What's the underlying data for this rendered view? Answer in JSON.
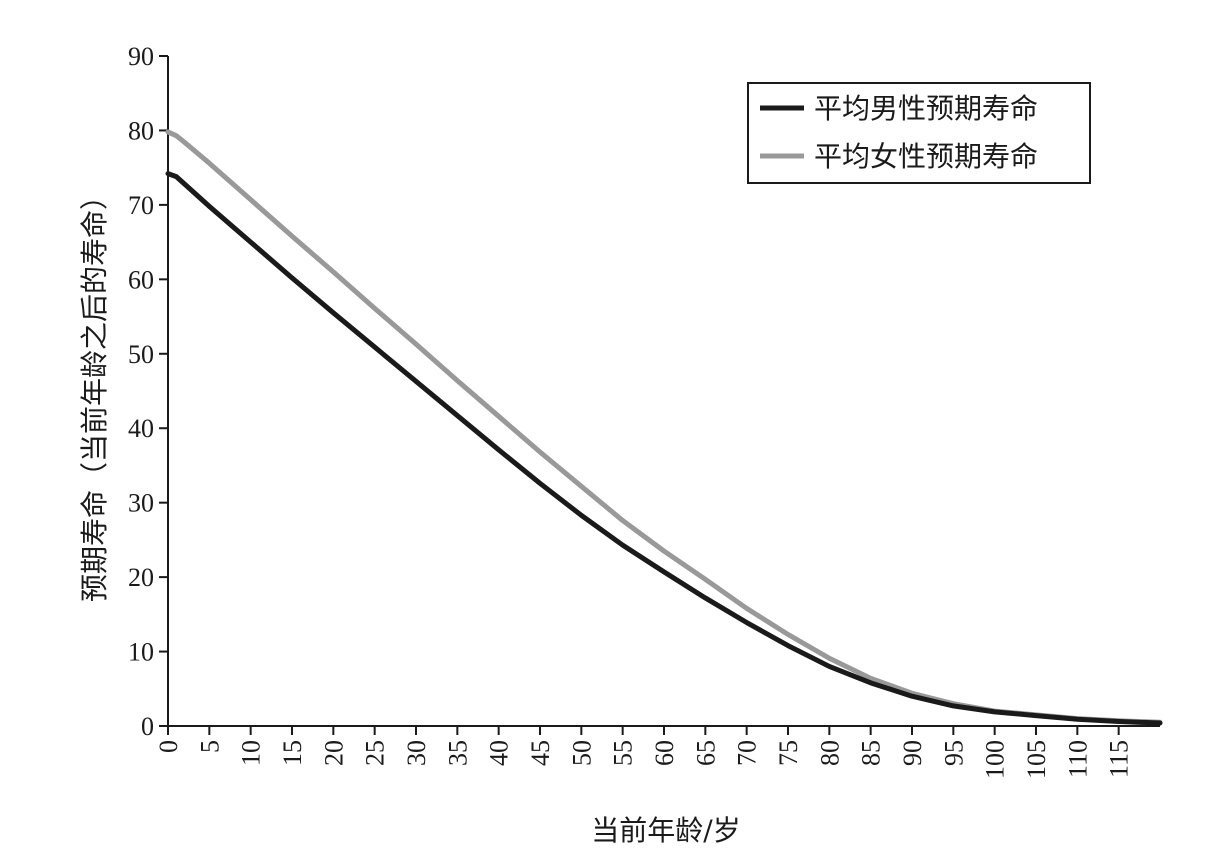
{
  "chart_data": {
    "type": "line",
    "title": "",
    "xlabel": "当前年龄/岁",
    "ylabel": "预期寿命（当前年龄之后的寿命）",
    "xlim": [
      0,
      120
    ],
    "ylim": [
      0,
      90
    ],
    "x_ticks": [
      0,
      5,
      10,
      15,
      20,
      25,
      30,
      35,
      40,
      45,
      50,
      55,
      60,
      65,
      70,
      75,
      80,
      85,
      90,
      95,
      100,
      105,
      110,
      115
    ],
    "y_ticks": [
      0,
      10,
      20,
      30,
      40,
      50,
      60,
      70,
      80,
      90
    ],
    "grid": false,
    "legend_position": "top-right",
    "x": [
      0,
      1,
      2,
      5,
      10,
      15,
      20,
      25,
      30,
      35,
      40,
      45,
      50,
      55,
      60,
      65,
      70,
      75,
      80,
      85,
      90,
      95,
      100,
      105,
      110,
      115,
      120
    ],
    "series": [
      {
        "name": "平均男性预期寿命",
        "color": "#1a1a1a",
        "values": [
          74.2,
          73.8,
          72.8,
          69.8,
          65.0,
          60.2,
          55.5,
          50.9,
          46.3,
          41.7,
          37.1,
          32.6,
          28.3,
          24.3,
          20.7,
          17.2,
          13.9,
          10.8,
          8.0,
          5.8,
          4.0,
          2.7,
          1.9,
          1.4,
          0.9,
          0.6,
          0.4
        ]
      },
      {
        "name": "平均女性预期寿命",
        "color": "#999999",
        "values": [
          79.8,
          79.3,
          78.4,
          75.6,
          70.7,
          65.8,
          61.0,
          56.1,
          51.3,
          46.4,
          41.6,
          36.8,
          32.2,
          27.6,
          23.5,
          19.7,
          15.8,
          12.3,
          9.1,
          6.4,
          4.4,
          3.0,
          2.0,
          1.5,
          1.0,
          0.7,
          0.5
        ]
      }
    ]
  }
}
